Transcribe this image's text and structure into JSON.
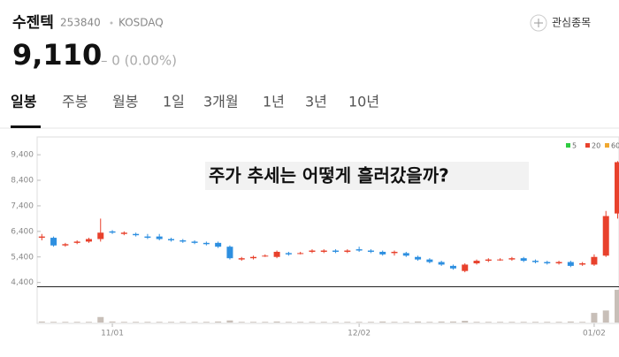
{
  "header": {
    "name": "수젠텍",
    "code": "253840",
    "market": "KOSDAQ",
    "watch": "관심종목",
    "price": "9,110",
    "change": "– 0 (0.00%)"
  },
  "tabs": [
    "일봉",
    "주봉",
    "월봉",
    "1일",
    "3개월",
    "1년",
    "3년",
    "10년"
  ],
  "overlay": "주가 추세는 어떻게 흘러갔을까?",
  "legend": [
    {
      "name": "5",
      "color": "#2ecc40"
    },
    {
      "name": "20",
      "color": "#e8412c"
    },
    {
      "name": "60",
      "color": "#f0a830"
    }
  ],
  "chart_data": {
    "type": "candlestick",
    "categories": [
      null,
      null,
      null,
      null,
      null,
      null,
      "11/01",
      null,
      null,
      null,
      null,
      null,
      null,
      null,
      null,
      null,
      null,
      null,
      null,
      null,
      null,
      null,
      null,
      null,
      null,
      null,
      null,
      "12/02",
      null,
      null,
      null,
      null,
      null,
      null,
      null,
      null,
      null,
      null,
      null,
      null,
      null,
      null,
      null,
      null,
      null,
      null,
      null,
      "01/02",
      null,
      null
    ],
    "open": [
      6150,
      6150,
      5850,
      5950,
      6000,
      6100,
      6400,
      6300,
      6300,
      6200,
      6200,
      6100,
      6050,
      6000,
      5950,
      5950,
      5800,
      5300,
      5350,
      5450,
      5400,
      5550,
      5550,
      5600,
      5600,
      5650,
      5600,
      5700,
      5650,
      5600,
      5550,
      5550,
      5400,
      5300,
      5200,
      5050,
      4850,
      5150,
      5250,
      5300,
      5300,
      5350,
      5250,
      5200,
      5150,
      5200,
      5100,
      5100,
      5450,
      7100
    ],
    "high": [
      6300,
      6200,
      5950,
      6050,
      6150,
      6900,
      6450,
      6400,
      6350,
      6300,
      6300,
      6150,
      6100,
      6050,
      6000,
      6000,
      5850,
      5400,
      5450,
      5500,
      5650,
      5600,
      5600,
      5700,
      5700,
      5700,
      5700,
      5800,
      5700,
      5650,
      5650,
      5600,
      5450,
      5350,
      5250,
      5100,
      5150,
      5300,
      5350,
      5350,
      5400,
      5400,
      5300,
      5250,
      5250,
      5250,
      5200,
      5500,
      7200,
      9150
    ],
    "low": [
      6050,
      5800,
      5800,
      5900,
      5950,
      6000,
      6300,
      6250,
      6200,
      6100,
      6050,
      6000,
      5950,
      5900,
      5850,
      5750,
      5300,
      5250,
      5300,
      5400,
      5350,
      5450,
      5500,
      5550,
      5550,
      5550,
      5550,
      5600,
      5550,
      5450,
      5450,
      5400,
      5250,
      5150,
      5050,
      4900,
      4800,
      5100,
      5200,
      5250,
      5250,
      5200,
      5150,
      5100,
      5100,
      5000,
      5050,
      5050,
      5400,
      6900
    ],
    "close": [
      6200,
      5850,
      5900,
      6000,
      6100,
      6350,
      6350,
      6350,
      6250,
      6150,
      6100,
      6050,
      6000,
      5950,
      5900,
      5800,
      5350,
      5350,
      5400,
      5450,
      5600,
      5500,
      5550,
      5650,
      5650,
      5600,
      5650,
      5650,
      5600,
      5500,
      5600,
      5450,
      5300,
      5200,
      5100,
      4950,
      5100,
      5250,
      5300,
      5300,
      5350,
      5250,
      5200,
      5150,
      5200,
      5050,
      5150,
      5400,
      7000,
      9110
    ],
    "volume": [
      3,
      2,
      2,
      2,
      2,
      16,
      3,
      2,
      2,
      2,
      2,
      2,
      2,
      2,
      2,
      3,
      6,
      2,
      2,
      2,
      3,
      2,
      2,
      2,
      2,
      2,
      2,
      2,
      2,
      3,
      2,
      2,
      3,
      2,
      3,
      3,
      5,
      2,
      2,
      2,
      2,
      2,
      2,
      2,
      2,
      3,
      2,
      28,
      35,
      95
    ],
    "up_color": "#e8412c",
    "down_color": "#2d8fe0",
    "ylim": [
      4250,
      9750
    ],
    "volume_lim": [
      0,
      100
    ],
    "yticks": [
      {
        "value": 9400,
        "label": "9,400"
      },
      {
        "value": 8400,
        "label": "8,400"
      },
      {
        "value": 7400,
        "label": "7,400"
      },
      {
        "value": 6400,
        "label": "6,400"
      },
      {
        "value": 5400,
        "label": "5,400"
      },
      {
        "value": 4400,
        "label": "4,400"
      }
    ]
  }
}
